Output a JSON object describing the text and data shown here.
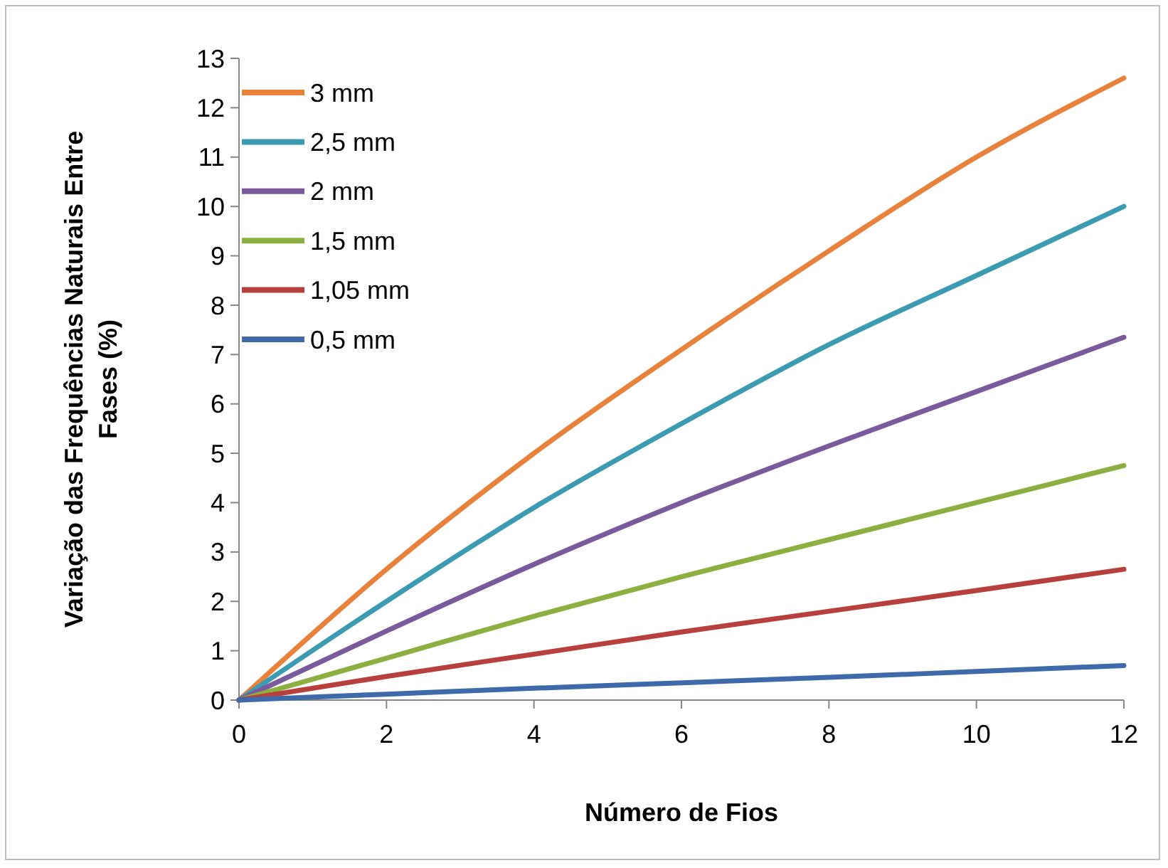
{
  "chart_data": {
    "type": "line",
    "xlabel": "Número de Fios",
    "ylabel": "Variação das Frequências Naturais Entre\nFases (%)",
    "x": [
      0,
      2,
      4,
      6,
      8,
      10,
      12
    ],
    "xlim": [
      0,
      12
    ],
    "xticks": [
      0,
      2,
      4,
      6,
      8,
      10,
      12
    ],
    "ylim": [
      0,
      13
    ],
    "yticks": [
      0,
      1,
      2,
      3,
      4,
      5,
      6,
      7,
      8,
      9,
      10,
      11,
      12,
      13
    ],
    "grid": false,
    "legend": "top left",
    "marker": "none",
    "line_style": "solid",
    "series": [
      {
        "name": "3 mm",
        "color": "#e8823a",
        "values": [
          0,
          2.65,
          5.0,
          7.1,
          9.1,
          11.0,
          12.6
        ]
      },
      {
        "name": "2,5 mm",
        "color": "#3a9bb3",
        "values": [
          0,
          2.0,
          3.9,
          5.6,
          7.2,
          8.6,
          10.0
        ]
      },
      {
        "name": "2 mm",
        "color": "#7a5a9c",
        "values": [
          0,
          1.4,
          2.75,
          4.0,
          5.15,
          6.25,
          7.35
        ]
      },
      {
        "name": "1,5 mm",
        "color": "#8cb040",
        "values": [
          0,
          0.85,
          1.7,
          2.5,
          3.25,
          4.0,
          4.75
        ]
      },
      {
        "name": "1,05 mm",
        "color": "#b8403c",
        "values": [
          0,
          0.48,
          0.93,
          1.38,
          1.8,
          2.22,
          2.65
        ]
      },
      {
        "name": "0,5 mm",
        "color": "#3e6aaa",
        "values": [
          0,
          0.12,
          0.24,
          0.35,
          0.46,
          0.58,
          0.7
        ]
      }
    ]
  }
}
